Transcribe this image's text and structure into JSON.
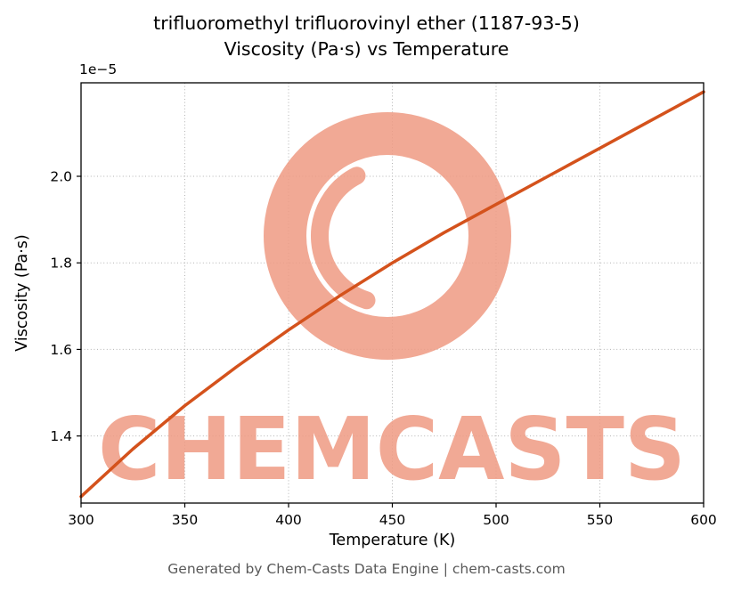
{
  "title": {
    "line1": "trifluoromethyl trifluorovinyl ether (1187-93-5)",
    "line2": "Viscosity (Pa·s) vs Temperature"
  },
  "footer": "Generated by Chem-Casts Data Engine | chem-casts.com",
  "watermark": {
    "text": "CHEMCASTS",
    "color": "#ef9a83"
  },
  "chart_data": {
    "type": "line",
    "title": "trifluoromethyl trifluorovinyl ether (1187-93-5) — Viscosity (Pa·s) vs Temperature",
    "xlabel": "Temperature (K)",
    "ylabel": "Viscosity (Pa·s)",
    "y_axis_offset_label": "1e−5",
    "y_unit_multiplier": 1e-05,
    "x_range": [
      300,
      600
    ],
    "y_range_1e5": [
      1.245,
      2.216
    ],
    "x_ticks": [
      300,
      350,
      400,
      450,
      500,
      550,
      600
    ],
    "y_ticks_1e5": [
      1.4,
      1.6,
      1.8,
      2.0
    ],
    "grid": true,
    "legend_position": "none",
    "line_color": "#d4521c",
    "series": [
      {
        "name": "Viscosity",
        "x_K": [
          300,
          325,
          350,
          375,
          400,
          425,
          450,
          475,
          500,
          525,
          550,
          575,
          600
        ],
        "y_Pa_s_1e5": [
          1.26,
          1.37,
          1.47,
          1.56,
          1.645,
          1.725,
          1.8,
          1.87,
          1.935,
          2.0,
          2.065,
          2.13,
          2.195
        ]
      }
    ]
  }
}
